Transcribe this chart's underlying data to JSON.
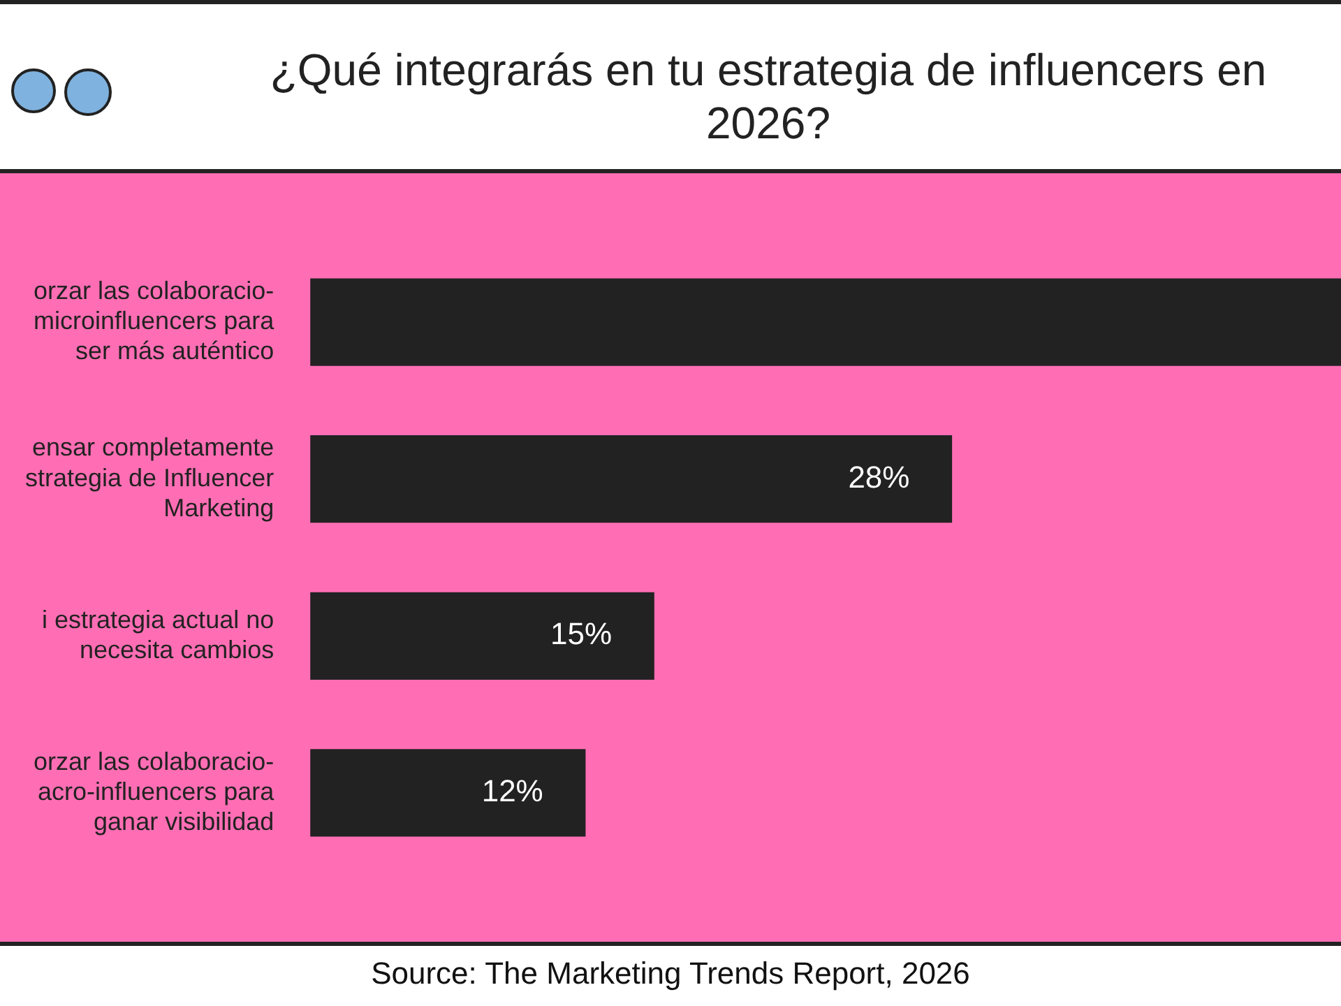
{
  "chart_data": {
    "type": "bar",
    "orientation": "horizontal",
    "title": "¿Qué integrarás en tu estrategia de influencers en 2026?",
    "categories": [
      "orzar las colaboracio- microinfluencers para ser más auténtico",
      "ensar completamente strategia de Influencer Marketing",
      "i estrategia actual no necesita cambios",
      "orzar las colaboracio- acro-influencers para ganar visibilidad"
    ],
    "values": [
      45,
      28,
      15,
      12
    ],
    "value_labels": [
      null,
      "28%",
      "15%",
      "12%"
    ],
    "color": "#222222",
    "legend": false,
    "annotations": [
      "Source: The Marketing Trends Report, 2026"
    ]
  }
}
